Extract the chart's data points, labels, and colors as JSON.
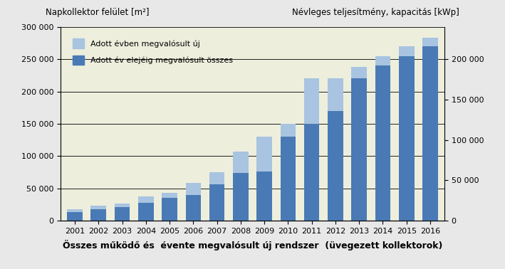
{
  "years": [
    2001,
    2002,
    2003,
    2004,
    2005,
    2006,
    2007,
    2008,
    2009,
    2010,
    2011,
    2012,
    2013,
    2014,
    2015,
    2016
  ],
  "cumulative": [
    13000,
    18000,
    21000,
    28000,
    35000,
    40000,
    56000,
    74000,
    76000,
    130000,
    150000,
    170000,
    220000,
    240000,
    255000,
    270000
  ],
  "total_new": [
    18000,
    23000,
    26000,
    37000,
    43000,
    58000,
    75000,
    107000,
    130000,
    150000,
    220000,
    220000,
    238000,
    255000,
    270000,
    283000
  ],
  "color_cumulative": "#4a7ab5",
  "color_new": "#a8c4e0",
  "background_color": "#eeeedd",
  "fig_background": "#e8e8e8",
  "title_left": "Napkollektor felület [m²]",
  "title_right": "Névleges teljesítmény, kapacitás [kWp]",
  "xlabel": "Összes működő és  évente megvalósult új rendszer  (üvegezett kollektorok)",
  "legend_new": "Adott évben megvalósult új",
  "legend_cumulative": "Adott év elejéig megvalósult összes",
  "ylim_left": [
    0,
    300000
  ],
  "yticks_left": [
    0,
    50000,
    100000,
    150000,
    200000,
    250000,
    300000
  ],
  "yticks_right": [
    0,
    50000,
    100000,
    150000,
    200000
  ],
  "bar_width": 0.65
}
